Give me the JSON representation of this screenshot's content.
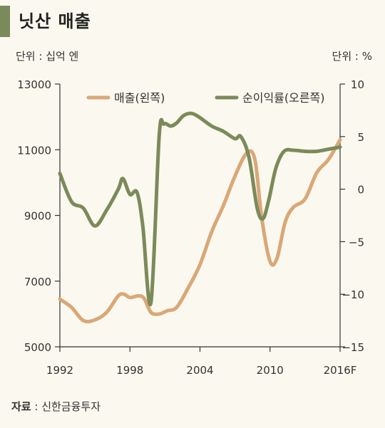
{
  "header": {
    "title": "닛산 매출",
    "unit_left": "단위 : 십억 엔",
    "unit_right": "단위 : %"
  },
  "source": {
    "label": "자료",
    "separator": " : ",
    "text": "신한금융투자"
  },
  "colors": {
    "sales": "#d9a877",
    "margin": "#7b8a5a",
    "axis": "#333333",
    "background": "#fbf8ef"
  },
  "chart_data": {
    "type": "line",
    "x_tick_labels": [
      "1992",
      "1998",
      "2004",
      "2010",
      "2016F"
    ],
    "x_ticks": [
      1992,
      1998,
      2004,
      2010,
      2016
    ],
    "xlim": [
      1992,
      2016
    ],
    "y_left": {
      "ylim": [
        5000,
        13000
      ],
      "ticks": [
        5000,
        7000,
        9000,
        11000,
        13000
      ]
    },
    "y_right": {
      "ylim": [
        -15,
        10
      ],
      "ticks": [
        -15,
        -10,
        -5,
        0,
        5,
        10
      ]
    },
    "series": [
      {
        "name": "매출(왼쪽)",
        "axis": "left",
        "x": [
          1992,
          1993,
          1994,
          1995,
          1996,
          1997,
          1997.5,
          1998,
          1998.7,
          1999.2,
          1999.8,
          2000.5,
          2001.2,
          2002,
          2003,
          2004,
          2005,
          2006,
          2007,
          2008,
          2008.7,
          2009.3,
          2010,
          2010.6,
          2011.3,
          2012,
          2013,
          2014,
          2015,
          2016
        ],
        "values": [
          6450,
          6200,
          5800,
          5820,
          6050,
          6550,
          6600,
          6500,
          6550,
          6480,
          6050,
          6000,
          6100,
          6200,
          6800,
          7500,
          8500,
          9300,
          10200,
          10900,
          10700,
          8900,
          7600,
          7700,
          8800,
          9250,
          9500,
          10300,
          10700,
          11300
        ]
      },
      {
        "name": "순이익률(오른쪽)",
        "axis": "right",
        "x": [
          1992,
          1993,
          1994,
          1995,
          1996,
          1997,
          1997.4,
          1998,
          1998.6,
          1999.1,
          1999.8,
          2000.5,
          2000.9,
          2001.5,
          2002,
          2002.6,
          2003.3,
          2004,
          2005,
          2006,
          2007,
          2007.5,
          2008.2,
          2008.9,
          2009.4,
          2009.9,
          2010.5,
          2011.2,
          2012,
          2013,
          2014,
          2015,
          2016
        ],
        "values": [
          1.5,
          -1.2,
          -1.8,
          -3.5,
          -2.0,
          0.0,
          1.0,
          -0.5,
          -0.3,
          -3.5,
          -10.8,
          5.0,
          6.2,
          6.0,
          6.3,
          7.0,
          7.2,
          6.8,
          6.0,
          5.5,
          4.8,
          5.0,
          3.0,
          -1.8,
          -2.8,
          -1.0,
          2.0,
          3.6,
          3.7,
          3.6,
          3.6,
          3.8,
          4.0
        ]
      }
    ]
  }
}
